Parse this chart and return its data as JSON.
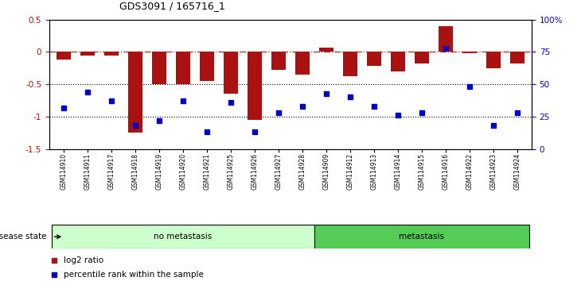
{
  "title": "GDS3091 / 165716_1",
  "samples": [
    "GSM114910",
    "GSM114911",
    "GSM114917",
    "GSM114918",
    "GSM114919",
    "GSM114920",
    "GSM114921",
    "GSM114925",
    "GSM114926",
    "GSM114927",
    "GSM114928",
    "GSM114909",
    "GSM114912",
    "GSM114913",
    "GSM114914",
    "GSM114915",
    "GSM114916",
    "GSM114922",
    "GSM114923",
    "GSM114924"
  ],
  "log2_ratio": [
    -0.12,
    -0.05,
    -0.06,
    -1.25,
    -0.5,
    -0.5,
    -0.45,
    -0.65,
    -1.05,
    -0.28,
    -0.35,
    0.07,
    -0.38,
    -0.22,
    -0.3,
    -0.18,
    0.4,
    -0.02,
    -0.25,
    -0.18
  ],
  "percentile_rank": [
    32,
    44,
    37,
    18,
    22,
    37,
    13,
    36,
    13,
    28,
    33,
    43,
    40,
    33,
    26,
    28,
    78,
    48,
    18,
    28
  ],
  "group_labels": [
    "no metastasis",
    "metastasis"
  ],
  "group_sizes": [
    11,
    9
  ],
  "group_colors": [
    "#ccffcc",
    "#55cc55"
  ],
  "bar_color": "#aa1111",
  "dot_color": "#0000cc",
  "bg_color": "#ffffff",
  "ylim_left": [
    -1.5,
    0.5
  ],
  "ylim_right": [
    0,
    100
  ],
  "disease_state_label": "disease state",
  "legend_items": [
    "log2 ratio",
    "percentile rank within the sample"
  ]
}
